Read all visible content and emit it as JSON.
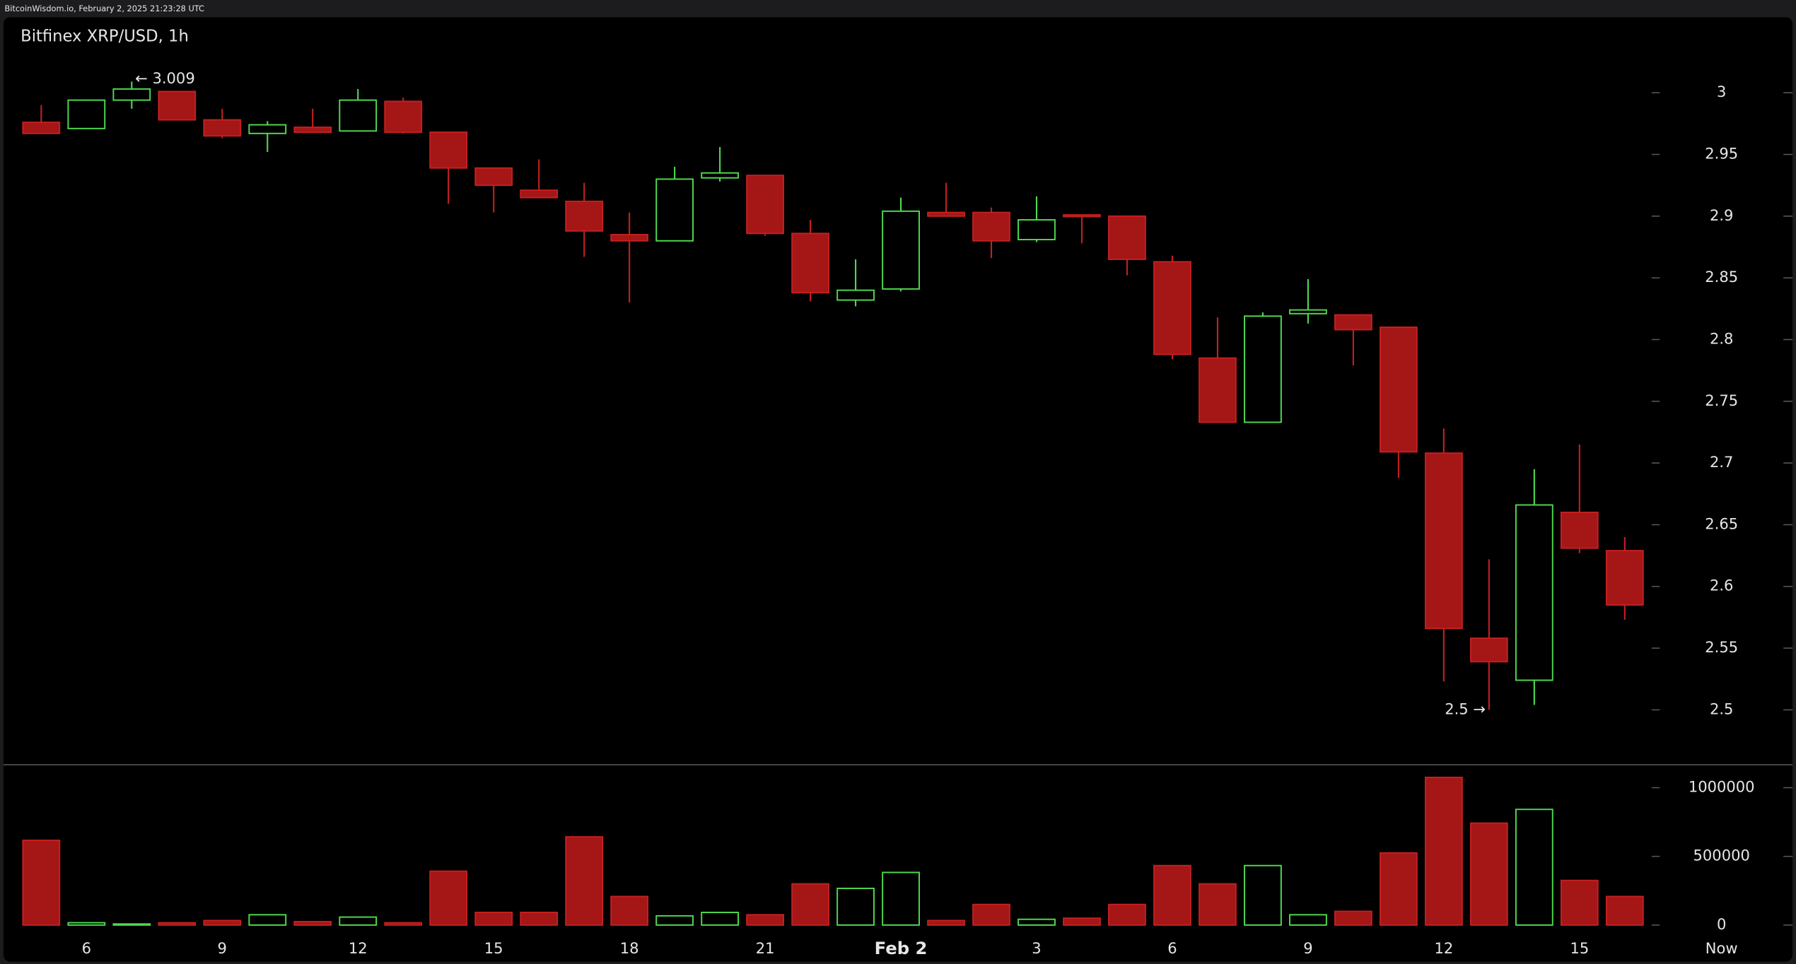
{
  "header": {
    "source": "BitcoinWisdom.io, February 2, 2025 21:23:28 UTC"
  },
  "chart_data": {
    "type": "candlestick",
    "title": "Bitfinex XRP/USD, 1h",
    "categories": [
      null,
      "6",
      null,
      null,
      "9",
      null,
      null,
      "12",
      null,
      null,
      "15",
      null,
      null,
      "18",
      null,
      null,
      "21",
      null,
      null,
      "Feb 2",
      null,
      null,
      "3",
      null,
      null,
      "6",
      null,
      null,
      "9",
      null,
      null,
      "12",
      null,
      null,
      "15",
      null
    ],
    "x_end_label": "Now",
    "open": [
      2.976,
      2.971,
      2.994,
      3.001,
      2.978,
      2.967,
      2.972,
      2.969,
      2.993,
      2.968,
      2.939,
      2.921,
      2.912,
      2.885,
      2.88,
      2.931,
      2.933,
      2.886,
      2.832,
      2.841,
      2.903,
      2.903,
      2.881,
      2.901,
      2.9,
      2.863,
      2.785,
      2.733,
      2.821,
      2.82,
      2.81,
      2.708,
      2.558,
      2.524,
      2.66,
      2.629
    ],
    "high": [
      2.99,
      2.994,
      3.009,
      3.001,
      2.987,
      2.977,
      2.987,
      3.003,
      2.996,
      2.968,
      2.939,
      2.946,
      2.927,
      2.903,
      2.94,
      2.956,
      2.933,
      2.897,
      2.865,
      2.915,
      2.927,
      2.907,
      2.916,
      2.901,
      2.9,
      2.868,
      2.818,
      2.822,
      2.849,
      2.82,
      2.81,
      2.728,
      2.622,
      2.695,
      2.715,
      2.64
    ],
    "low": [
      2.967,
      2.971,
      2.987,
      2.978,
      2.963,
      2.952,
      2.968,
      2.969,
      2.967,
      2.91,
      2.903,
      2.915,
      2.867,
      2.83,
      2.88,
      2.928,
      2.884,
      2.831,
      2.827,
      2.839,
      2.9,
      2.866,
      2.879,
      2.878,
      2.852,
      2.784,
      2.733,
      2.733,
      2.813,
      2.779,
      2.688,
      2.523,
      2.5,
      2.504,
      2.627,
      2.573
    ],
    "close": [
      2.967,
      2.994,
      3.003,
      2.978,
      2.965,
      2.974,
      2.968,
      2.994,
      2.968,
      2.939,
      2.925,
      2.915,
      2.888,
      2.88,
      2.93,
      2.935,
      2.886,
      2.838,
      2.84,
      2.904,
      2.9,
      2.88,
      2.897,
      2.9,
      2.865,
      2.788,
      2.733,
      2.819,
      2.824,
      2.808,
      2.709,
      2.566,
      2.539,
      2.666,
      2.631,
      2.585
    ],
    "volume": [
      617000,
      17000,
      8000,
      17000,
      33000,
      75000,
      25000,
      58000,
      17000,
      392000,
      92000,
      92000,
      642000,
      208000,
      67000,
      92000,
      75000,
      300000,
      267000,
      383000,
      33000,
      150000,
      42000,
      50000,
      150000,
      433000,
      300000,
      433000,
      75000,
      100000,
      525000,
      1075000,
      742000,
      842000,
      325000,
      208000
    ],
    "ylim": [
      2.4555,
      3.038
    ],
    "yticks": [
      2.5,
      2.55,
      2.6,
      2.65,
      2.7,
      2.75,
      2.8,
      2.85,
      2.9,
      2.95,
      3
    ],
    "y2lim": [
      0,
      1166667
    ],
    "y2ticks": [
      0,
      500000,
      1000000
    ],
    "up_color": "#4fd94f",
    "down_color": "#a51616",
    "annotations": [
      {
        "label": "← 3.009",
        "value": 3.009,
        "field": "high"
      },
      {
        "label": "2.5 →",
        "value": 2.5,
        "field": "low"
      }
    ]
  }
}
